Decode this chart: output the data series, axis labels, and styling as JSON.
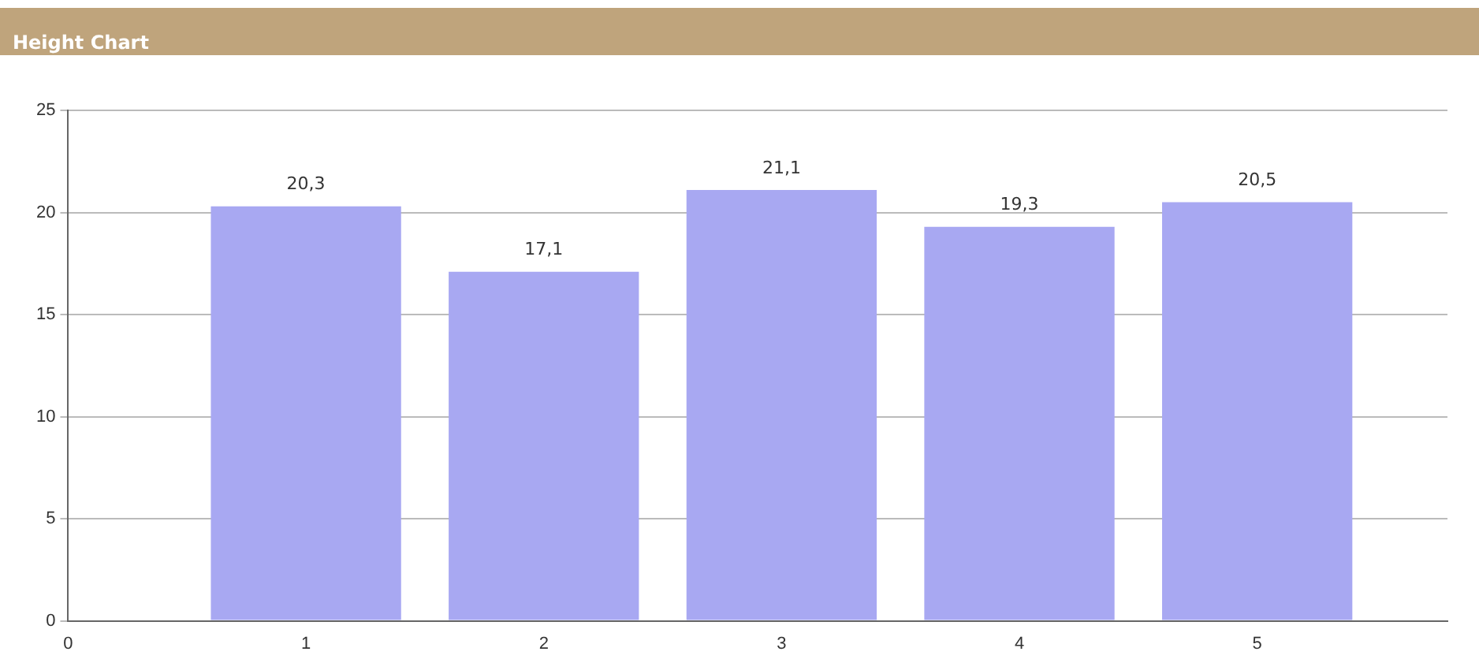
{
  "chart_data": {
    "type": "bar",
    "title": "Height Chart",
    "x": [
      1,
      2,
      3,
      4,
      5
    ],
    "values": [
      20.3,
      17.1,
      21.1,
      19.3,
      20.5
    ],
    "value_labels": [
      "20,3",
      "17,1",
      "21,1",
      "19,3",
      "20,5"
    ],
    "color": "#a8a8f2",
    "xlim": [
      0,
      5.8
    ],
    "xticks": [
      0,
      1,
      2,
      3,
      4,
      5
    ],
    "ylim": [
      0,
      25
    ],
    "yticks": [
      0,
      5,
      10,
      15,
      20,
      25
    ],
    "grid": "y"
  }
}
